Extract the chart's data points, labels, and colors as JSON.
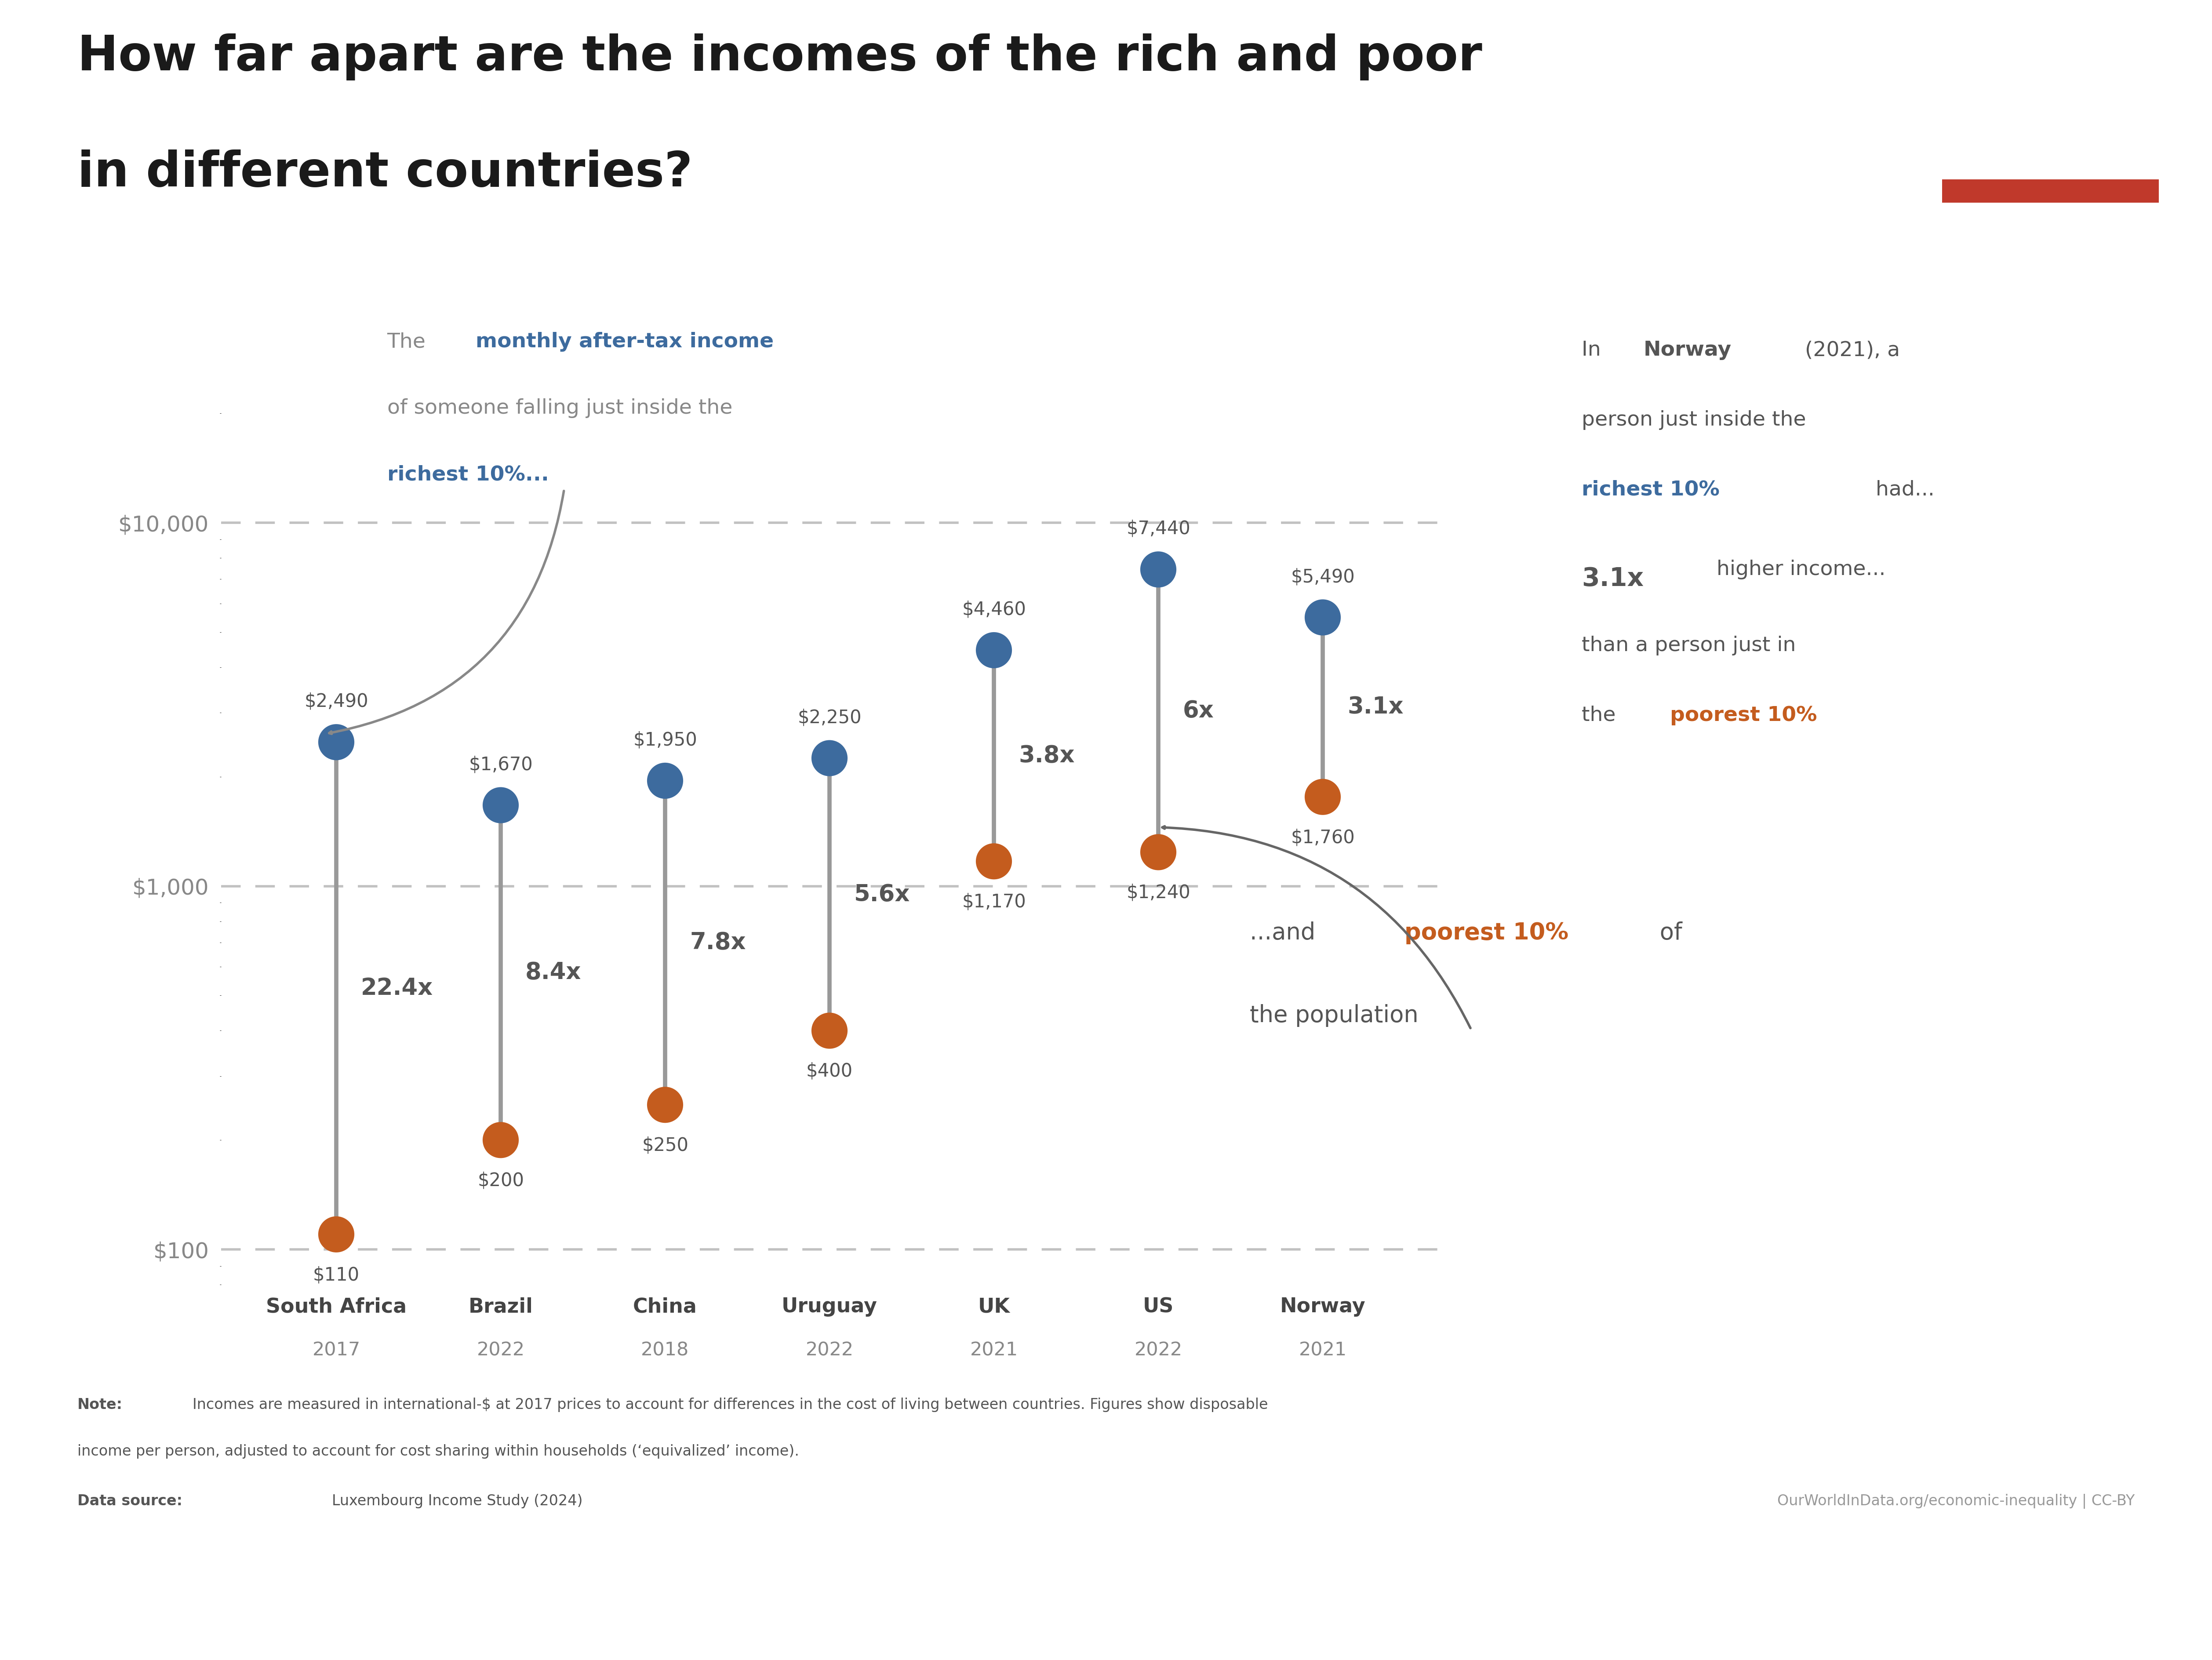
{
  "title_line1": "How far apart are the incomes of the rich and poor",
  "title_line2": "in different countries?",
  "bg_color": "#ffffff",
  "rich_color": "#3d6b9e",
  "poor_color": "#c45c1e",
  "line_color": "#999999",
  "grid_color": "#bbbbbb",
  "countries": [
    {
      "name": "South Africa",
      "year": "2017",
      "rich": 2490,
      "poor": 110,
      "ratio": "22.4x",
      "x": 1
    },
    {
      "name": "Brazil",
      "year": "2022",
      "rich": 1670,
      "poor": 200,
      "ratio": "8.4x",
      "x": 2
    },
    {
      "name": "China",
      "year": "2018",
      "rich": 1950,
      "poor": 250,
      "ratio": "7.8x",
      "x": 3
    },
    {
      "name": "Uruguay",
      "year": "2022",
      "rich": 2250,
      "poor": 400,
      "ratio": "5.6x",
      "x": 4
    },
    {
      "name": "UK",
      "year": "2021",
      "rich": 4460,
      "poor": 1170,
      "ratio": "3.8x",
      "x": 5
    },
    {
      "name": "US",
      "year": "2022",
      "rich": 7440,
      "poor": 1240,
      "ratio": "6x",
      "x": 6
    },
    {
      "name": "Norway",
      "year": "2021",
      "rich": 5490,
      "poor": 1760,
      "ratio": "3.1x",
      "x": 7
    }
  ],
  "yticks": [
    100,
    1000,
    10000
  ],
  "ytick_labels": [
    "$100",
    "$1,000",
    "$10,000"
  ],
  "annotation_gray": "#888888",
  "annotation_dark": "#555555",
  "title_color": "#1a1a1a",
  "country_color": "#444444",
  "owid_navy": "#1d3461",
  "owid_red": "#c0392b"
}
